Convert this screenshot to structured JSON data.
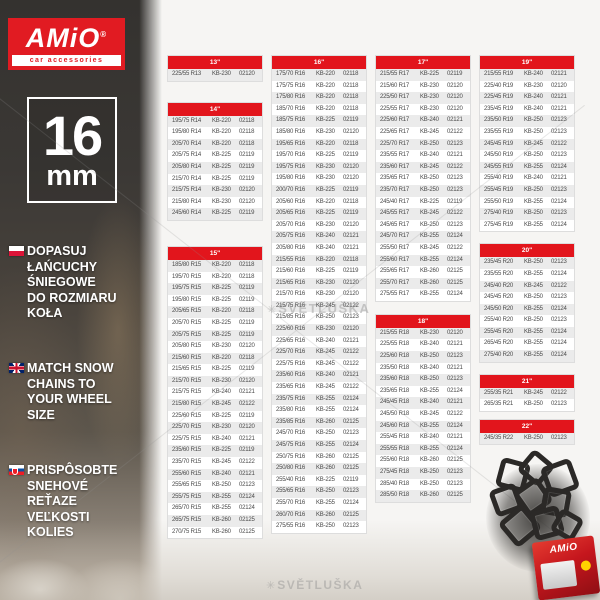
{
  "branding": {
    "logo_text": "AMiO",
    "logo_registered": "®",
    "logo_subtext": "car accessories",
    "badge_size": "16",
    "badge_unit": "mm"
  },
  "languages": [
    {
      "flag": "poland",
      "lines": [
        "DOPASUJ",
        "ŁAŃCUCHY",
        "ŚNIEGOWE",
        "DO ROZMIARU",
        "KOŁA"
      ]
    },
    {
      "flag": "united-kingdom",
      "lines": [
        "MATCH SNOW",
        "CHAINS TO",
        "YOUR WHEEL",
        "SIZE"
      ]
    },
    {
      "flag": "slovakia",
      "lines": [
        "PRISPÔSOBTE",
        "SNEHOVÉ",
        "REŤAZE",
        "VEĽKOSTI",
        "KOLIES"
      ]
    }
  ],
  "watermark": {
    "center": "SVĚTLUŠKA",
    "bottom": "SVĚTLUŠKA",
    "icon": "✳"
  },
  "product": {
    "box_label": "AMiO"
  },
  "colors": {
    "brand_red": "#e11b22",
    "table_header_red": "#e2151c",
    "row_alt_gray": "#ebebeb",
    "text_dark": "#4a4a4a"
  },
  "tables": {
    "columns": [
      [
        {
          "id": "13",
          "title": "13\"",
          "rows": [
            [
              "225/55 R13",
              "KB-230",
              "02120"
            ]
          ]
        },
        {
          "id": "14",
          "title": "14\"",
          "rows": [
            [
              "195/75 R14",
              "KB-220",
              "02118"
            ],
            [
              "195/80 R14",
              "KB-220",
              "02118"
            ],
            [
              "205/70 R14",
              "KB-220",
              "02118"
            ],
            [
              "205/75 R14",
              "KB-225",
              "02119"
            ],
            [
              "205/80 R14",
              "KB-225",
              "02119"
            ],
            [
              "215/70 R14",
              "KB-225",
              "02119"
            ],
            [
              "215/75 R14",
              "KB-230",
              "02120"
            ],
            [
              "215/80 R14",
              "KB-230",
              "02120"
            ],
            [
              "245/60 R14",
              "KB-225",
              "02119"
            ]
          ]
        },
        {
          "id": "15",
          "title": "15\"",
          "rows": [
            [
              "185/80 R15",
              "KB-220",
              "02118"
            ],
            [
              "195/70 R15",
              "KB-220",
              "02118"
            ],
            [
              "195/75 R15",
              "KB-225",
              "02119"
            ],
            [
              "195/80 R15",
              "KB-225",
              "02119"
            ],
            [
              "205/65 R15",
              "KB-220",
              "02118"
            ],
            [
              "205/70 R15",
              "KB-225",
              "02119"
            ],
            [
              "205/75 R15",
              "KB-225",
              "02119"
            ],
            [
              "205/80 R15",
              "KB-230",
              "02120"
            ],
            [
              "215/60 R15",
              "KB-220",
              "02118"
            ],
            [
              "215/65 R15",
              "KB-225",
              "02119"
            ],
            [
              "215/70 R15",
              "KB-230",
              "02120"
            ],
            [
              "215/75 R15",
              "KB-240",
              "02121"
            ],
            [
              "215/80 R15",
              "KB-245",
              "02122"
            ],
            [
              "225/60 R15",
              "KB-225",
              "02119"
            ],
            [
              "225/70 R15",
              "KB-230",
              "02120"
            ],
            [
              "225/75 R15",
              "KB-240",
              "02121"
            ],
            [
              "235/60 R15",
              "KB-225",
              "02119"
            ],
            [
              "235/70 R15",
              "KB-245",
              "02122"
            ],
            [
              "255/60 R15",
              "KB-240",
              "02121"
            ],
            [
              "255/65 R15",
              "KB-250",
              "02123"
            ],
            [
              "255/75 R15",
              "KB-255",
              "02124"
            ],
            [
              "265/70 R15",
              "KB-255",
              "02124"
            ],
            [
              "265/75 R15",
              "KB-260",
              "02125"
            ],
            [
              "270/75 R15",
              "KB-260",
              "02125"
            ]
          ]
        }
      ],
      [
        {
          "id": "16",
          "title": "16\"",
          "rows": [
            [
              "175/70 R16",
              "KB-220",
              "02118"
            ],
            [
              "175/75 R16",
              "KB-220",
              "02118"
            ],
            [
              "175/80 R16",
              "KB-220",
              "02118"
            ],
            [
              "185/70 R16",
              "KB-220",
              "02118"
            ],
            [
              "185/75 R16",
              "KB-225",
              "02119"
            ],
            [
              "185/80 R16",
              "KB-230",
              "02120"
            ],
            [
              "195/65 R16",
              "KB-220",
              "02118"
            ],
            [
              "195/70 R16",
              "KB-225",
              "02119"
            ],
            [
              "195/75 R16",
              "KB-230",
              "02120"
            ],
            [
              "195/80 R16",
              "KB-230",
              "02120"
            ],
            [
              "200/70 R16",
              "KB-225",
              "02119"
            ],
            [
              "205/60 R16",
              "KB-220",
              "02118"
            ],
            [
              "205/65 R16",
              "KB-225",
              "02119"
            ],
            [
              "205/70 R16",
              "KB-230",
              "02120"
            ],
            [
              "205/75 R16",
              "KB-240",
              "02121"
            ],
            [
              "205/80 R16",
              "KB-240",
              "02121"
            ],
            [
              "215/55 R16",
              "KB-220",
              "02118"
            ],
            [
              "215/60 R16",
              "KB-225",
              "02119"
            ],
            [
              "215/65 R16",
              "KB-230",
              "02120"
            ],
            [
              "215/70 R16",
              "KB-230",
              "02120"
            ],
            [
              "215/75 R16",
              "KB-245",
              "02122"
            ],
            [
              "215/85 R16",
              "KB-250",
              "02123"
            ],
            [
              "225/60 R16",
              "KB-230",
              "02120"
            ],
            [
              "225/65 R16",
              "KB-240",
              "02121"
            ],
            [
              "225/70 R16",
              "KB-245",
              "02122"
            ],
            [
              "225/75 R16",
              "KB-245",
              "02122"
            ],
            [
              "235/60 R16",
              "KB-240",
              "02121"
            ],
            [
              "235/65 R16",
              "KB-245",
              "02122"
            ],
            [
              "235/75 R16",
              "KB-255",
              "02124"
            ],
            [
              "235/80 R16",
              "KB-255",
              "02124"
            ],
            [
              "235/85 R16",
              "KB-260",
              "02125"
            ],
            [
              "245/70 R16",
              "KB-250",
              "02123"
            ],
            [
              "245/75 R16",
              "KB-255",
              "02124"
            ],
            [
              "250/75 R16",
              "KB-260",
              "02125"
            ],
            [
              "250/80 R16",
              "KB-260",
              "02125"
            ],
            [
              "255/40 R16",
              "KB-225",
              "02119"
            ],
            [
              "255/65 R16",
              "KB-250",
              "02123"
            ],
            [
              "255/70 R16",
              "KB-255",
              "02124"
            ],
            [
              "260/70 R16",
              "KB-260",
              "02125"
            ],
            [
              "275/55 R16",
              "KB-250",
              "02123"
            ]
          ]
        }
      ],
      [
        {
          "id": "17",
          "title": "17\"",
          "rows": [
            [
              "215/55 R17",
              "KB-225",
              "02119"
            ],
            [
              "215/60 R17",
              "KB-230",
              "02120"
            ],
            [
              "225/50 R17",
              "KB-230",
              "02120"
            ],
            [
              "225/55 R17",
              "KB-230",
              "02120"
            ],
            [
              "225/60 R17",
              "KB-240",
              "02121"
            ],
            [
              "225/65 R17",
              "KB-245",
              "02122"
            ],
            [
              "225/70 R17",
              "KB-250",
              "02123"
            ],
            [
              "235/55 R17",
              "KB-240",
              "02121"
            ],
            [
              "235/60 R17",
              "KB-245",
              "02122"
            ],
            [
              "235/65 R17",
              "KB-250",
              "02123"
            ],
            [
              "235/70 R17",
              "KB-250",
              "02123"
            ],
            [
              "245/40 R17",
              "KB-225",
              "02119"
            ],
            [
              "245/55 R17",
              "KB-245",
              "02122"
            ],
            [
              "245/65 R17",
              "KB-250",
              "02123"
            ],
            [
              "245/70 R17",
              "KB-255",
              "02124"
            ],
            [
              "255/50 R17",
              "KB-245",
              "02122"
            ],
            [
              "255/60 R17",
              "KB-255",
              "02124"
            ],
            [
              "255/65 R17",
              "KB-260",
              "02125"
            ],
            [
              "255/70 R17",
              "KB-260",
              "02125"
            ],
            [
              "275/55 R17",
              "KB-255",
              "02124"
            ]
          ]
        },
        {
          "id": "18",
          "title": "18\"",
          "rows": [
            [
              "215/55 R18",
              "KB-230",
              "02120"
            ],
            [
              "225/55 R18",
              "KB-240",
              "02121"
            ],
            [
              "225/60 R18",
              "KB-250",
              "02123"
            ],
            [
              "235/50 R18",
              "KB-240",
              "02121"
            ],
            [
              "235/60 R18",
              "KB-250",
              "02123"
            ],
            [
              "235/65 R18",
              "KB-255",
              "02124"
            ],
            [
              "245/45 R18",
              "KB-240",
              "02121"
            ],
            [
              "245/50 R18",
              "KB-245",
              "02122"
            ],
            [
              "245/60 R18",
              "KB-255",
              "02124"
            ],
            [
              "255/45 R18",
              "KB-240",
              "02121"
            ],
            [
              "255/55 R18",
              "KB-255",
              "02124"
            ],
            [
              "255/60 R18",
              "KB-260",
              "02125"
            ],
            [
              "275/45 R18",
              "KB-250",
              "02123"
            ],
            [
              "285/40 R18",
              "KB-250",
              "02123"
            ],
            [
              "285/50 R18",
              "KB-260",
              "02125"
            ]
          ]
        }
      ],
      [
        {
          "id": "19",
          "title": "19\"",
          "rows": [
            [
              "215/55 R19",
              "KB-240",
              "02121"
            ],
            [
              "225/40 R19",
              "KB-230",
              "02120"
            ],
            [
              "225/45 R19",
              "KB-240",
              "02121"
            ],
            [
              "235/45 R19",
              "KB-240",
              "02121"
            ],
            [
              "235/50 R19",
              "KB-250",
              "02123"
            ],
            [
              "235/55 R19",
              "KB-250",
              "02123"
            ],
            [
              "245/45 R19",
              "KB-245",
              "02122"
            ],
            [
              "245/50 R19",
              "KB-250",
              "02123"
            ],
            [
              "245/55 R19",
              "KB-255",
              "02124"
            ],
            [
              "255/40 R19",
              "KB-240",
              "02121"
            ],
            [
              "255/45 R19",
              "KB-250",
              "02123"
            ],
            [
              "255/50 R19",
              "KB-255",
              "02124"
            ],
            [
              "275/40 R19",
              "KB-250",
              "02123"
            ],
            [
              "275/45 R19",
              "KB-255",
              "02124"
            ]
          ]
        },
        {
          "id": "20",
          "title": "20\"",
          "rows": [
            [
              "235/45 R20",
              "KB-250",
              "02123"
            ],
            [
              "235/55 R20",
              "KB-255",
              "02124"
            ],
            [
              "245/40 R20",
              "KB-245",
              "02122"
            ],
            [
              "245/45 R20",
              "KB-250",
              "02123"
            ],
            [
              "245/50 R20",
              "KB-255",
              "02124"
            ],
            [
              "255/40 R20",
              "KB-250",
              "02123"
            ],
            [
              "255/45 R20",
              "KB-255",
              "02124"
            ],
            [
              "265/45 R20",
              "KB-255",
              "02124"
            ],
            [
              "275/40 R20",
              "KB-255",
              "02124"
            ]
          ]
        },
        {
          "id": "21",
          "title": "21\"",
          "rows": [
            [
              "255/35 R21",
              "KB-245",
              "02122"
            ],
            [
              "265/35 R21",
              "KB-250",
              "02123"
            ]
          ]
        },
        {
          "id": "22",
          "title": "22\"",
          "rows": [
            [
              "245/35 R22",
              "KB-250",
              "02123"
            ]
          ]
        }
      ]
    ]
  }
}
